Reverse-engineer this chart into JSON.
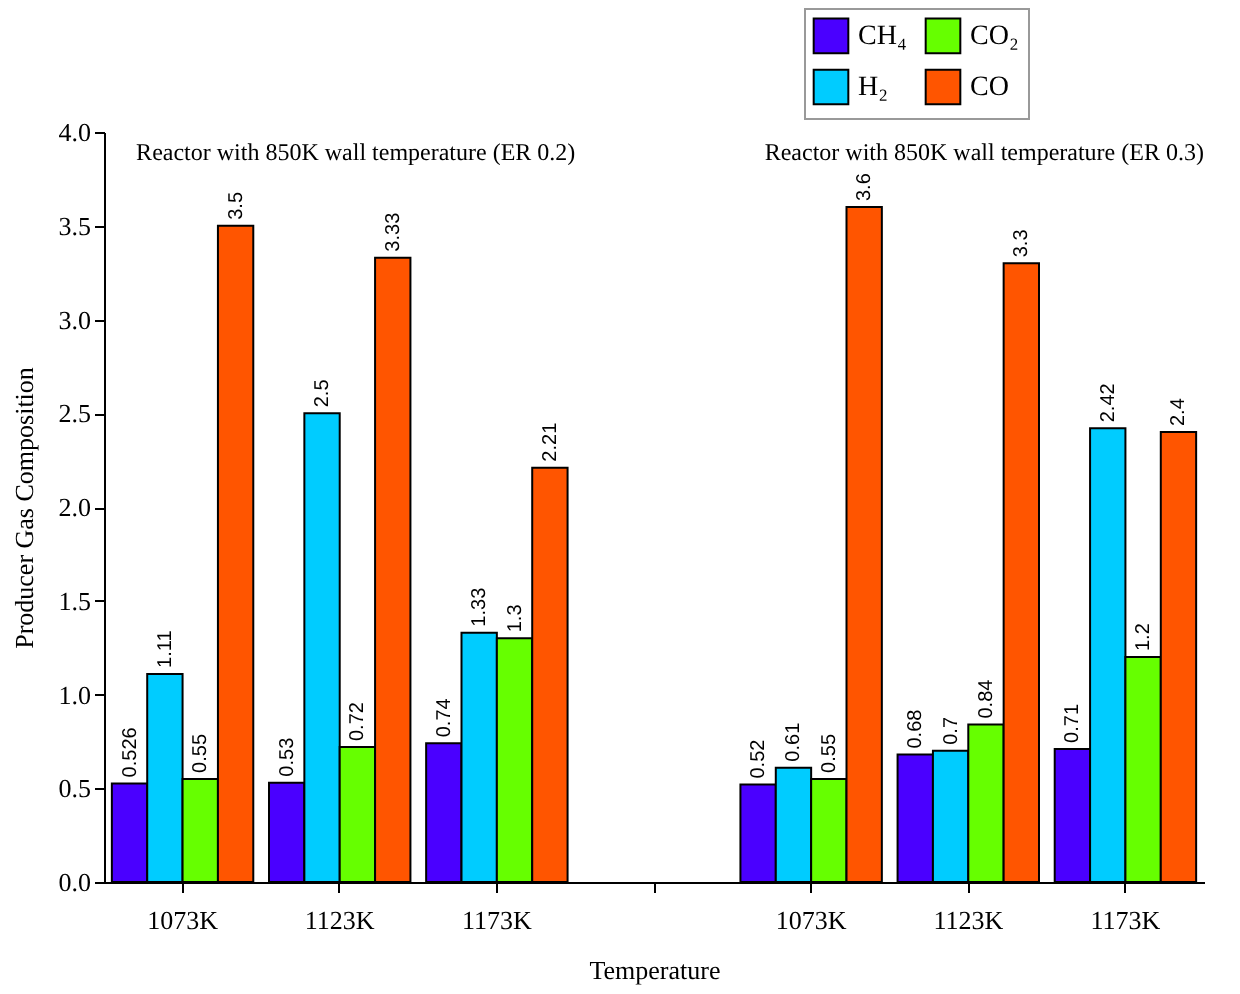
{
  "chart_data": {
    "type": "bar",
    "xlabel": "Temperature",
    "ylabel": "Producer Gas Composition",
    "categories": [
      "1073K",
      "1123K",
      "1173K",
      null,
      "1073K",
      "1123K",
      "1173K"
    ],
    "series": [
      {
        "name": "CH₄",
        "color": "#4a00ff",
        "values": [
          0.526,
          0.53,
          0.74,
          null,
          0.52,
          0.68,
          0.71
        ]
      },
      {
        "name": "H₂",
        "color": "#00ccff",
        "values": [
          1.11,
          2.5,
          1.33,
          null,
          0.61,
          0.7,
          2.42
        ]
      },
      {
        "name": "CO₂",
        "color": "#66ff00",
        "values": [
          0.55,
          0.72,
          1.3,
          null,
          0.55,
          0.84,
          1.2
        ]
      },
      {
        "name": "CO",
        "color": "#ff5500",
        "values": [
          3.5,
          3.33,
          2.21,
          null,
          3.6,
          3.3,
          2.4
        ]
      }
    ],
    "ylim": [
      0,
      4
    ],
    "yticks": [
      {
        "value": 0,
        "label": "0.0"
      },
      {
        "value": 0.5,
        "label": "0.5"
      },
      {
        "value": 1,
        "label": "1.0"
      },
      {
        "value": 1.5,
        "label": "1.5"
      },
      {
        "value": 2,
        "label": "2.0"
      },
      {
        "value": 2.5,
        "label": "2.5"
      },
      {
        "value": 3,
        "label": "3.0"
      },
      {
        "value": 3.5,
        "label": "3.5"
      },
      {
        "value": 4,
        "label": "4.0"
      }
    ],
    "annotations": [
      "Reactor with 850K wall temperature (ER 0.2)",
      "Reactor with 850K wall temperature (ER 0.3)"
    ],
    "data_labels": true,
    "grid": false,
    "legend": "top right"
  }
}
